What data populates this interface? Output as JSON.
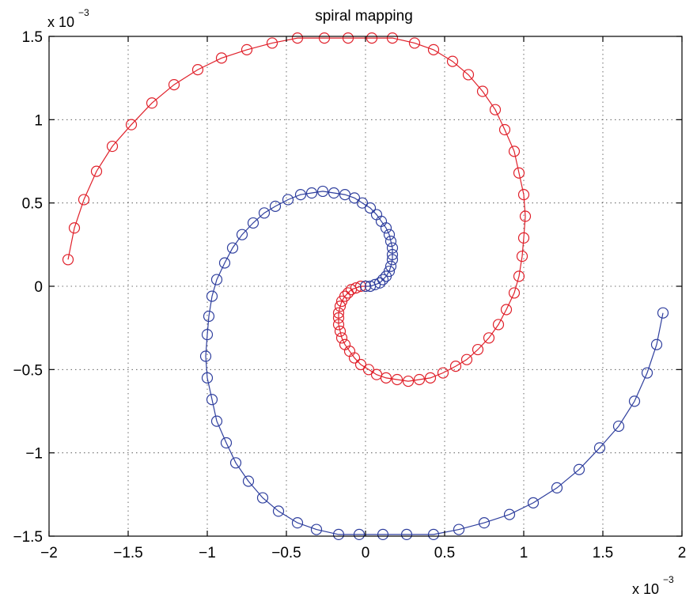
{
  "chart_data": {
    "type": "line",
    "title": "spiral mapping",
    "xlabel": "",
    "ylabel": "",
    "x_exponent_label": "x 10",
    "x_exponent_power": "−3",
    "y_exponent_label": "x 10",
    "y_exponent_power": "−3",
    "xlim": [
      -2,
      2
    ],
    "ylim": [
      -1.5,
      1.5
    ],
    "xticks": [
      -2,
      -1.5,
      -1,
      -0.5,
      0,
      0.5,
      1,
      1.5,
      2
    ],
    "yticks": [
      -1.5,
      -1,
      -0.5,
      0,
      0.5,
      1,
      1.5
    ],
    "xtick_labels": [
      "−2",
      "−1.5",
      "−1",
      "−0.5",
      "0",
      "0.5",
      "1",
      "1.5",
      "2"
    ],
    "ytick_labels": [
      "−1.5",
      "−1",
      "−0.5",
      "0",
      "0.5",
      "1",
      "1.5"
    ],
    "grid": true,
    "marker": "circle",
    "series": [
      {
        "color": "#e0202a",
        "points": [
          [
            0,
            0
          ],
          [
            -0.03,
            0.0
          ],
          [
            -0.06,
            -0.01
          ],
          [
            -0.09,
            -0.02
          ],
          [
            -0.11,
            -0.04
          ],
          [
            -0.13,
            -0.06
          ],
          [
            -0.15,
            -0.09
          ],
          [
            -0.16,
            -0.12
          ],
          [
            -0.17,
            -0.16
          ],
          [
            -0.17,
            -0.19
          ],
          [
            -0.17,
            -0.23
          ],
          [
            -0.16,
            -0.27
          ],
          [
            -0.15,
            -0.31
          ],
          [
            -0.13,
            -0.35
          ],
          [
            -0.1,
            -0.39
          ],
          [
            -0.07,
            -0.43
          ],
          [
            -0.03,
            -0.47
          ],
          [
            0.02,
            -0.5
          ],
          [
            0.07,
            -0.53
          ],
          [
            0.13,
            -0.55
          ],
          [
            0.2,
            -0.56
          ],
          [
            0.27,
            -0.57
          ],
          [
            0.34,
            -0.56
          ],
          [
            0.41,
            -0.55
          ],
          [
            0.49,
            -0.52
          ],
          [
            0.57,
            -0.48
          ],
          [
            0.64,
            -0.44
          ],
          [
            0.71,
            -0.38
          ],
          [
            0.78,
            -0.31
          ],
          [
            0.84,
            -0.23
          ],
          [
            0.89,
            -0.14
          ],
          [
            0.94,
            -0.04
          ],
          [
            0.97,
            0.06
          ],
          [
            0.99,
            0.18
          ],
          [
            1.0,
            0.29
          ],
          [
            1.01,
            0.42
          ],
          [
            1.0,
            0.55
          ],
          [
            0.97,
            0.68
          ],
          [
            0.94,
            0.81
          ],
          [
            0.88,
            0.94
          ],
          [
            0.82,
            1.06
          ],
          [
            0.74,
            1.17
          ],
          [
            0.65,
            1.27
          ],
          [
            0.55,
            1.35
          ],
          [
            0.43,
            1.42
          ],
          [
            0.31,
            1.46
          ],
          [
            0.17,
            1.49
          ],
          [
            0.04,
            1.49
          ],
          [
            -0.11,
            1.49
          ],
          [
            -0.26,
            1.49
          ],
          [
            -0.43,
            1.49
          ],
          [
            -0.59,
            1.46
          ],
          [
            -0.75,
            1.42
          ],
          [
            -0.91,
            1.37
          ],
          [
            -1.06,
            1.3
          ],
          [
            -1.21,
            1.21
          ],
          [
            -1.35,
            1.1
          ],
          [
            -1.48,
            0.97
          ],
          [
            -1.6,
            0.84
          ],
          [
            -1.7,
            0.69
          ],
          [
            -1.78,
            0.52
          ],
          [
            -1.84,
            0.35
          ],
          [
            -1.88,
            0.16
          ]
        ]
      },
      {
        "color": "#2f3f9e",
        "points": [
          [
            0,
            0
          ],
          [
            0.03,
            0.0
          ],
          [
            0.06,
            0.01
          ],
          [
            0.09,
            0.02
          ],
          [
            0.11,
            0.04
          ],
          [
            0.13,
            0.06
          ],
          [
            0.15,
            0.09
          ],
          [
            0.16,
            0.12
          ],
          [
            0.17,
            0.16
          ],
          [
            0.17,
            0.19
          ],
          [
            0.17,
            0.23
          ],
          [
            0.16,
            0.27
          ],
          [
            0.15,
            0.31
          ],
          [
            0.13,
            0.35
          ],
          [
            0.1,
            0.39
          ],
          [
            0.07,
            0.43
          ],
          [
            0.03,
            0.47
          ],
          [
            -0.02,
            0.5
          ],
          [
            -0.07,
            0.53
          ],
          [
            -0.13,
            0.55
          ],
          [
            -0.2,
            0.56
          ],
          [
            -0.27,
            0.57
          ],
          [
            -0.34,
            0.56
          ],
          [
            -0.41,
            0.55
          ],
          [
            -0.49,
            0.52
          ],
          [
            -0.57,
            0.48
          ],
          [
            -0.64,
            0.44
          ],
          [
            -0.71,
            0.38
          ],
          [
            -0.78,
            0.31
          ],
          [
            -0.84,
            0.23
          ],
          [
            -0.89,
            0.14
          ],
          [
            -0.94,
            0.04
          ],
          [
            -0.97,
            -0.06
          ],
          [
            -0.99,
            -0.18
          ],
          [
            -1.0,
            -0.29
          ],
          [
            -1.01,
            -0.42
          ],
          [
            -1.0,
            -0.55
          ],
          [
            -0.97,
            -0.68
          ],
          [
            -0.94,
            -0.81
          ],
          [
            -0.88,
            -0.94
          ],
          [
            -0.82,
            -1.06
          ],
          [
            -0.74,
            -1.17
          ],
          [
            -0.65,
            -1.27
          ],
          [
            -0.55,
            -1.35
          ],
          [
            -0.43,
            -1.42
          ],
          [
            -0.31,
            -1.46
          ],
          [
            -0.17,
            -1.49
          ],
          [
            -0.04,
            -1.49
          ],
          [
            0.11,
            -1.49
          ],
          [
            0.26,
            -1.49
          ],
          [
            0.43,
            -1.49
          ],
          [
            0.59,
            -1.46
          ],
          [
            0.75,
            -1.42
          ],
          [
            0.91,
            -1.37
          ],
          [
            1.06,
            -1.3
          ],
          [
            1.21,
            -1.21
          ],
          [
            1.35,
            -1.1
          ],
          [
            1.48,
            -0.97
          ],
          [
            1.6,
            -0.84
          ],
          [
            1.7,
            -0.69
          ],
          [
            1.78,
            -0.52
          ],
          [
            1.84,
            -0.35
          ],
          [
            1.88,
            -0.16
          ]
        ]
      }
    ]
  }
}
